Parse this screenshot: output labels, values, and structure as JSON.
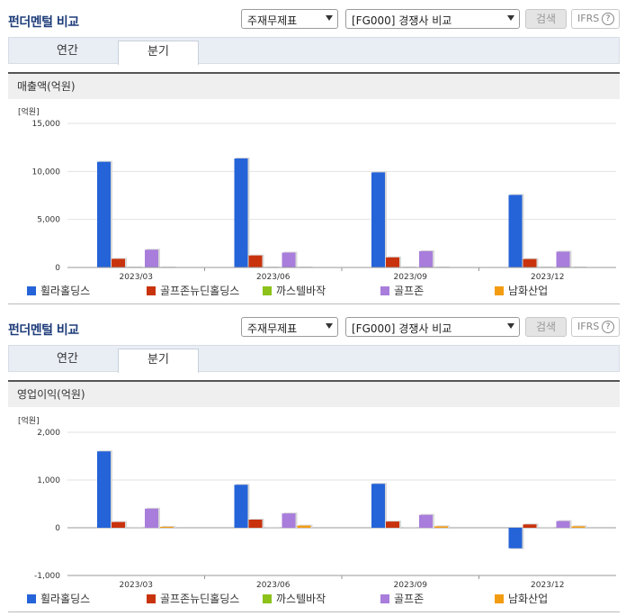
{
  "header": {
    "title": "펀더멘털 비교",
    "select1": "주재무제표",
    "select2": "[FG000] 경쟁사 비교",
    "search_label": "검색",
    "ifrs_label": "IFRS",
    "help_label": "?"
  },
  "tabs": [
    {
      "label": "연간",
      "active": false
    },
    {
      "label": "분기",
      "active": true
    }
  ],
  "legend": [
    {
      "name": "휠라홀딩스",
      "color": "#2563d8"
    },
    {
      "name": "골프존뉴딘홀딩스",
      "color": "#c8330d"
    },
    {
      "name": "까스텔바작",
      "color": "#8cc21a"
    },
    {
      "name": "골프존",
      "color": "#a87ddb"
    },
    {
      "name": "남화산업",
      "color": "#f39c12"
    }
  ],
  "chart_data": [
    {
      "type": "bar",
      "title": "매출액(억원)",
      "unit": "[억원]",
      "categories": [
        "2023/03",
        "2023/06",
        "2023/09",
        "2023/12"
      ],
      "ylim": [
        0,
        15000
      ],
      "yticks": [
        0,
        5000,
        10000,
        15000
      ],
      "ytick_labels": [
        "0",
        "5,000",
        "10,000",
        "15,000"
      ],
      "series": [
        {
          "name": "휠라홀딩스",
          "values": [
            11000,
            11350,
            9900,
            7550
          ]
        },
        {
          "name": "골프존뉴딘홀딩스",
          "values": [
            900,
            1250,
            1050,
            880
          ]
        },
        {
          "name": "까스텔바작",
          "values": [
            0,
            0,
            0,
            0
          ]
        },
        {
          "name": "골프존",
          "values": [
            1850,
            1550,
            1700,
            1650
          ]
        },
        {
          "name": "남화산업",
          "values": [
            0,
            0,
            0,
            0
          ]
        }
      ]
    },
    {
      "type": "bar",
      "title": "영업이익(억원)",
      "unit": "[억원]",
      "categories": [
        "2023/03",
        "2023/06",
        "2023/09",
        "2023/12"
      ],
      "ylim": [
        -1000,
        2000
      ],
      "yticks": [
        -1000,
        0,
        1000,
        2000
      ],
      "ytick_labels": [
        "-1,000",
        "0",
        "1,000",
        "2,000"
      ],
      "series": [
        {
          "name": "휠라홀딩스",
          "values": [
            1600,
            900,
            920,
            -430
          ]
        },
        {
          "name": "골프존뉴딘홀딩스",
          "values": [
            120,
            170,
            130,
            70
          ]
        },
        {
          "name": "까스텔바작",
          "values": [
            0,
            0,
            0,
            0
          ]
        },
        {
          "name": "골프존",
          "values": [
            400,
            300,
            270,
            140
          ]
        },
        {
          "name": "남화산업",
          "values": [
            20,
            45,
            30,
            30
          ]
        }
      ]
    }
  ]
}
